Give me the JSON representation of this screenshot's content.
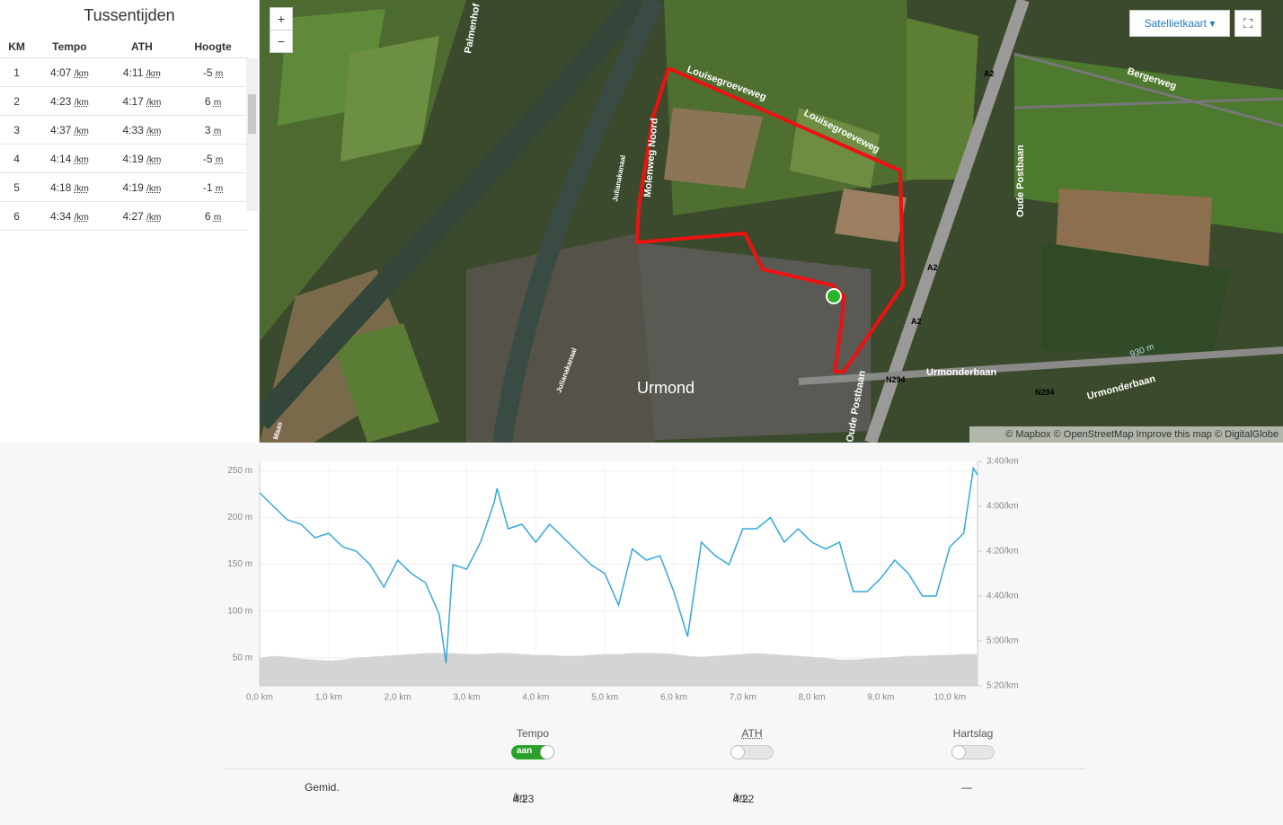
{
  "splits": {
    "title": "Tussentijden",
    "headers": [
      "KM",
      "Tempo",
      "ATH",
      "Hoogte"
    ],
    "rows": [
      [
        "1",
        "4:07",
        "/km",
        "4:11",
        "/km",
        "-5",
        "m"
      ],
      [
        "2",
        "4:23",
        "/km",
        "4:17",
        "/km",
        "6",
        "m"
      ],
      [
        "3",
        "4:37",
        "/km",
        "4:33",
        "/km",
        "3",
        "m"
      ],
      [
        "4",
        "4:14",
        "/km",
        "4:19",
        "/km",
        "-5",
        "m"
      ],
      [
        "5",
        "4:18",
        "/km",
        "4:19",
        "/km",
        "-1",
        "m"
      ],
      [
        "6",
        "4:34",
        "/km",
        "4:27",
        "/km",
        "6",
        "m"
      ]
    ]
  },
  "map": {
    "zoom_in": "+",
    "zoom_out": "−",
    "layer": "Satellietkaart",
    "attribution": "© Mapbox © OpenStreetMap Improve this map © DigitalGlobe",
    "labels": [
      "Palmenhof",
      "Louisegroeveweg",
      "Louisegroeveweg",
      "Molenweg Noord",
      "Julianakanaal",
      "Julianakanaal",
      "Bergerweg",
      "A2",
      "A2",
      "A2",
      "Oude Postbaan",
      "N294",
      "N294",
      "Urmonderbaan",
      "Urmonderbaan",
      "Urmond",
      "930 m",
      "Oude Postbaan",
      "Maas"
    ]
  },
  "chart_data": {
    "type": "line",
    "x": [
      0,
      0.2,
      0.4,
      0.6,
      0.8,
      1.0,
      1.2,
      1.4,
      1.6,
      1.8,
      2.0,
      2.2,
      2.4,
      2.6,
      2.7,
      2.8,
      3.0,
      3.2,
      3.4,
      3.44,
      3.6,
      3.8,
      4.0,
      4.2,
      4.4,
      4.6,
      4.8,
      5.0,
      5.2,
      5.4,
      5.6,
      5.8,
      6.0,
      6.2,
      6.4,
      6.6,
      6.8,
      7.0,
      7.2,
      7.4,
      7.6,
      7.8,
      8.0,
      8.2,
      8.4,
      8.6,
      8.8,
      9.0,
      9.2,
      9.4,
      9.6,
      9.8,
      10.0,
      10.2,
      10.34,
      10.4
    ],
    "series": [
      {
        "kind": "area",
        "color": "#d4d4d4",
        "values": [
          50,
          52,
          51,
          49,
          48,
          47,
          48,
          50,
          51,
          52,
          53,
          54,
          55,
          55,
          55,
          55,
          54,
          54,
          55,
          55,
          55,
          54,
          53,
          53,
          52,
          52,
          53,
          54,
          54,
          55,
          55,
          55,
          54,
          52,
          51,
          52,
          53,
          54,
          55,
          54,
          53,
          52,
          51,
          50,
          48,
          48,
          49,
          50,
          51,
          52,
          52,
          53,
          53,
          54,
          54,
          53
        ]
      },
      {
        "kind": "line",
        "axis": "y2",
        "color": "#35a8dc",
        "values": [
          234,
          240,
          246,
          248,
          254,
          252,
          258,
          260,
          266,
          276,
          264,
          270,
          274,
          288,
          310,
          266,
          268,
          256,
          238,
          232,
          250,
          248,
          256,
          248,
          254,
          260,
          266,
          270,
          284,
          259,
          264,
          262,
          278,
          298,
          256,
          262,
          266,
          250,
          250,
          245,
          256,
          250,
          256,
          259,
          256,
          278,
          278,
          272,
          264,
          270,
          280,
          280,
          258,
          252,
          223,
          226
        ]
      }
    ],
    "xlim": [
      0,
      10.4
    ],
    "xticks": [
      {
        "value": 0,
        "label": "0,0 km"
      },
      {
        "value": 1,
        "label": "1,0 km"
      },
      {
        "value": 2,
        "label": "2,0 km"
      },
      {
        "value": 3,
        "label": "3,0 km"
      },
      {
        "value": 4,
        "label": "4,0 km"
      },
      {
        "value": 5,
        "label": "5,0 km"
      },
      {
        "value": 6,
        "label": "6,0 km"
      },
      {
        "value": 7,
        "label": "7,0 km"
      },
      {
        "value": 8,
        "label": "8,0 km"
      },
      {
        "value": 9,
        "label": "9,0 km"
      },
      {
        "value": 10,
        "label": "10,0 km"
      }
    ],
    "ylim": [
      20,
      260
    ],
    "yticks": [
      {
        "value": 50,
        "label": "50 m"
      },
      {
        "value": 100,
        "label": "100 m"
      },
      {
        "value": 150,
        "label": "150 m"
      },
      {
        "value": 200,
        "label": "200 m"
      },
      {
        "value": 250,
        "label": "250 m"
      }
    ],
    "y2lim": [
      320,
      220
    ],
    "y2ticks": [
      {
        "value": 220,
        "label": "3:40/km"
      },
      {
        "value": 240,
        "label": "4:00/km"
      },
      {
        "value": 260,
        "label": "4:20/km"
      },
      {
        "value": 280,
        "label": "4:40/km"
      },
      {
        "value": 300,
        "label": "5:00/km"
      },
      {
        "value": 320,
        "label": "5:20/km"
      }
    ],
    "grid": true
  },
  "controls": [
    {
      "label": "Tempo",
      "state": "aan"
    },
    {
      "label": "ATH"
    },
    {
      "label": "Hartslag"
    }
  ],
  "summary": {
    "label": "Gemid.",
    "tempo": "4:23",
    "tempo_unit": "/km",
    "ath": "4:22",
    "ath_unit": "/km.",
    "heart": "—"
  }
}
